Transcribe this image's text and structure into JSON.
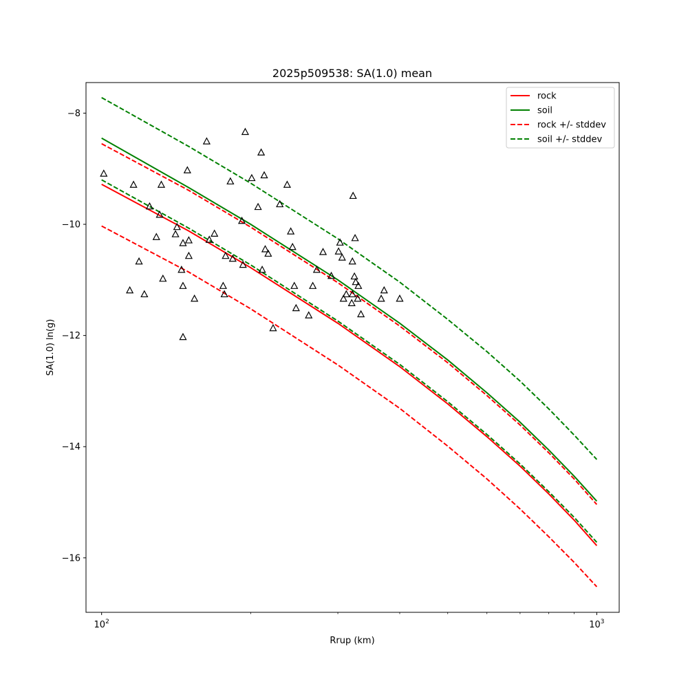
{
  "chart_data": {
    "type": "line",
    "title": "2025p509538: SA(1.0) mean",
    "xlabel": "Rrup (km)",
    "ylabel": "SA(1.0) ln(g)",
    "x_scale": "log",
    "xlim": [
      93,
      1110
    ],
    "ylim": [
      -16.98,
      -7.45
    ],
    "x_ticks": [
      {
        "value": 100,
        "base": "10",
        "exp": "2"
      },
      {
        "value": 1000,
        "base": "10",
        "exp": "3"
      }
    ],
    "y_ticks": [
      {
        "value": -8,
        "label": "−8"
      },
      {
        "value": -10,
        "label": "−10"
      },
      {
        "value": -12,
        "label": "−12"
      },
      {
        "value": -14,
        "label": "−14"
      },
      {
        "value": -16,
        "label": "−16"
      }
    ],
    "legend_position": "top-right",
    "series": [
      {
        "name": "rock",
        "color": "#ff0000",
        "dash": "solid",
        "x": [
          100,
          150,
          200,
          300,
          400,
          500,
          600,
          700,
          800,
          900,
          1000
        ],
        "y": [
          -9.28,
          -10.12,
          -10.78,
          -11.78,
          -12.56,
          -13.23,
          -13.82,
          -14.35,
          -14.85,
          -15.32,
          -15.78
        ]
      },
      {
        "name": "soil",
        "color": "#008000",
        "dash": "solid",
        "x": [
          100,
          150,
          200,
          300,
          400,
          500,
          600,
          700,
          800,
          900,
          1000
        ],
        "y": [
          -8.45,
          -9.34,
          -10.0,
          -11.0,
          -11.78,
          -12.44,
          -13.03,
          -13.56,
          -14.06,
          -14.53,
          -14.98
        ]
      },
      {
        "name": "rock +/- stddev",
        "color": "#ff0000",
        "dash": "dashed",
        "x": [
          100,
          150,
          200,
          300,
          400,
          500,
          600,
          700,
          800,
          900,
          1000
        ],
        "y": [
          -8.55,
          -9.39,
          -10.05,
          -11.05,
          -11.83,
          -12.49,
          -13.08,
          -13.61,
          -14.11,
          -14.58,
          -15.04
        ]
      },
      {
        "name": "rock +/- stddev",
        "color": "#ff0000",
        "dash": "dashed",
        "legend": false,
        "x": [
          100,
          150,
          200,
          300,
          400,
          500,
          600,
          700,
          800,
          900,
          1000
        ],
        "y": [
          -10.03,
          -10.86,
          -11.52,
          -12.53,
          -13.31,
          -13.99,
          -14.58,
          -15.12,
          -15.62,
          -16.08,
          -16.52
        ]
      },
      {
        "name": "soil +/- stddev",
        "color": "#008000",
        "dash": "dashed",
        "x": [
          100,
          150,
          200,
          300,
          400,
          500,
          600,
          700,
          800,
          900,
          1000
        ],
        "y": [
          -7.72,
          -8.6,
          -9.26,
          -10.26,
          -11.04,
          -11.71,
          -12.29,
          -12.82,
          -13.32,
          -13.79,
          -14.23
        ]
      },
      {
        "name": "soil +/- stddev",
        "color": "#008000",
        "dash": "dashed",
        "legend": false,
        "x": [
          100,
          150,
          200,
          300,
          400,
          500,
          600,
          700,
          800,
          900,
          1000
        ],
        "y": [
          -9.2,
          -10.07,
          -10.73,
          -11.74,
          -12.52,
          -13.19,
          -13.78,
          -14.31,
          -14.81,
          -15.27,
          -15.72
        ]
      }
    ],
    "observations": {
      "marker": "open-triangle",
      "color": "#000000",
      "points": [
        [
          101,
          -9.09
        ],
        [
          114,
          -11.19
        ],
        [
          116,
          -9.29
        ],
        [
          119,
          -10.67
        ],
        [
          122,
          -11.26
        ],
        [
          125,
          -9.68
        ],
        [
          129,
          -10.23
        ],
        [
          131,
          -9.83
        ],
        [
          132,
          -9.29
        ],
        [
          133,
          -10.98
        ],
        [
          141,
          -10.18
        ],
        [
          142,
          -10.05
        ],
        [
          145,
          -10.82
        ],
        [
          146,
          -10.34
        ],
        [
          146,
          -11.11
        ],
        [
          146,
          -12.03
        ],
        [
          149,
          -9.03
        ],
        [
          150,
          -10.57
        ],
        [
          150,
          -10.29
        ],
        [
          154,
          -11.34
        ],
        [
          163,
          -8.51
        ],
        [
          165,
          -10.28
        ],
        [
          169,
          -10.17
        ],
        [
          176,
          -11.11
        ],
        [
          177,
          -11.26
        ],
        [
          178,
          -10.57
        ],
        [
          182,
          -9.23
        ],
        [
          184,
          -10.62
        ],
        [
          192,
          -9.94
        ],
        [
          193,
          -10.73
        ],
        [
          195,
          -8.34
        ],
        [
          201,
          -9.17
        ],
        [
          207,
          -9.69
        ],
        [
          210,
          -8.71
        ],
        [
          211,
          -10.82
        ],
        [
          213,
          -9.12
        ],
        [
          214,
          -10.45
        ],
        [
          217,
          -10.53
        ],
        [
          222,
          -11.87
        ],
        [
          229,
          -9.64
        ],
        [
          237,
          -9.29
        ],
        [
          241,
          -10.13
        ],
        [
          243,
          -10.41
        ],
        [
          245,
          -11.11
        ],
        [
          247,
          -11.51
        ],
        [
          262,
          -11.64
        ],
        [
          267,
          -11.11
        ],
        [
          272,
          -10.82
        ],
        [
          280,
          -10.5
        ],
        [
          291,
          -10.93
        ],
        [
          301,
          -10.49
        ],
        [
          303,
          -10.33
        ],
        [
          306,
          -10.6
        ],
        [
          308,
          -11.34
        ],
        [
          312,
          -11.26
        ],
        [
          320,
          -11.42
        ],
        [
          321,
          -11.26
        ],
        [
          321,
          -10.67
        ],
        [
          322,
          -9.49
        ],
        [
          324,
          -10.94
        ],
        [
          325,
          -10.25
        ],
        [
          326,
          -11.04
        ],
        [
          329,
          -11.34
        ],
        [
          330,
          -11.11
        ],
        [
          334,
          -11.62
        ],
        [
          367,
          -11.34
        ],
        [
          372,
          -11.19
        ],
        [
          400,
          -11.34
        ]
      ]
    }
  }
}
